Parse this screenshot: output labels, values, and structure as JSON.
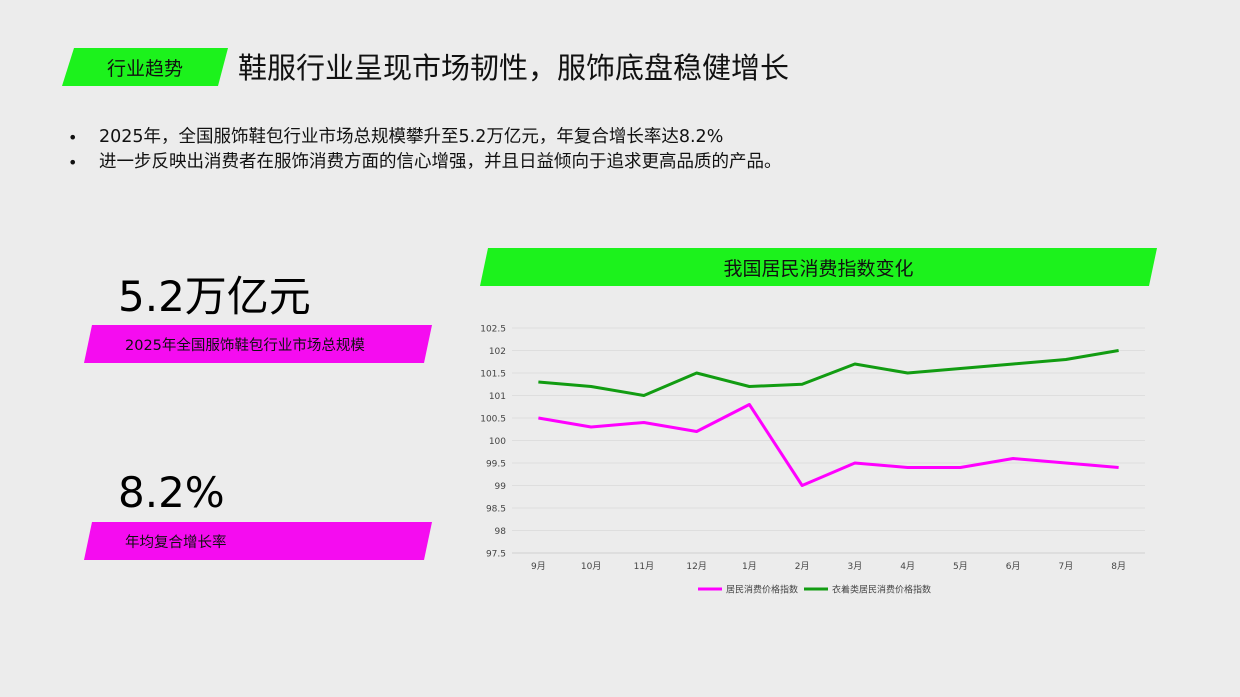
{
  "header": {
    "tag": "行业趋势",
    "title": "鞋服行业呈现市场韧性，服饰底盘稳健增长"
  },
  "bullets": [
    "2025年，全国服饰鞋包行业市场总规模攀升至5.2万亿元，年复合增长率达8.2%",
    "进一步反映出消费者在服饰消费方面的信心增强，并且日益倾向于追求更高品质的产品。"
  ],
  "stats": [
    {
      "value": "5.2万亿元",
      "label": "2025年全国服饰鞋包行业市场总规模"
    },
    {
      "value": "8.2%",
      "label": "年均复合增长率"
    }
  ],
  "colors": {
    "green": "#1cf21c",
    "magenta": "#f50cf0",
    "series_magenta": "#ff00ff",
    "series_green": "#129c12"
  },
  "chart_data": {
    "type": "line",
    "title": "我国居民消费指数变化",
    "categories": [
      "9月",
      "10月",
      "11月",
      "12月",
      "1月",
      "2月",
      "3月",
      "4月",
      "5月",
      "6月",
      "7月",
      "8月"
    ],
    "series": [
      {
        "name": "居民消费价格指数",
        "color": "#ff00ff",
        "values": [
          100.5,
          100.3,
          100.4,
          100.2,
          100.8,
          99.0,
          99.5,
          99.4,
          99.4,
          99.6,
          99.5,
          99.4
        ]
      },
      {
        "name": "衣着类居民消费价格指数",
        "color": "#129c12",
        "values": [
          101.3,
          101.2,
          101.0,
          101.5,
          101.2,
          101.25,
          101.7,
          101.5,
          101.6,
          101.7,
          101.8,
          102.0
        ]
      }
    ],
    "ylim": [
      97.5,
      102.5
    ],
    "yticks": [
      "97.5",
      "98",
      "98.5",
      "99",
      "99.5",
      "100",
      "100.5",
      "101",
      "101.5",
      "102",
      "102.5"
    ],
    "grid": true,
    "legend": "bottom"
  }
}
